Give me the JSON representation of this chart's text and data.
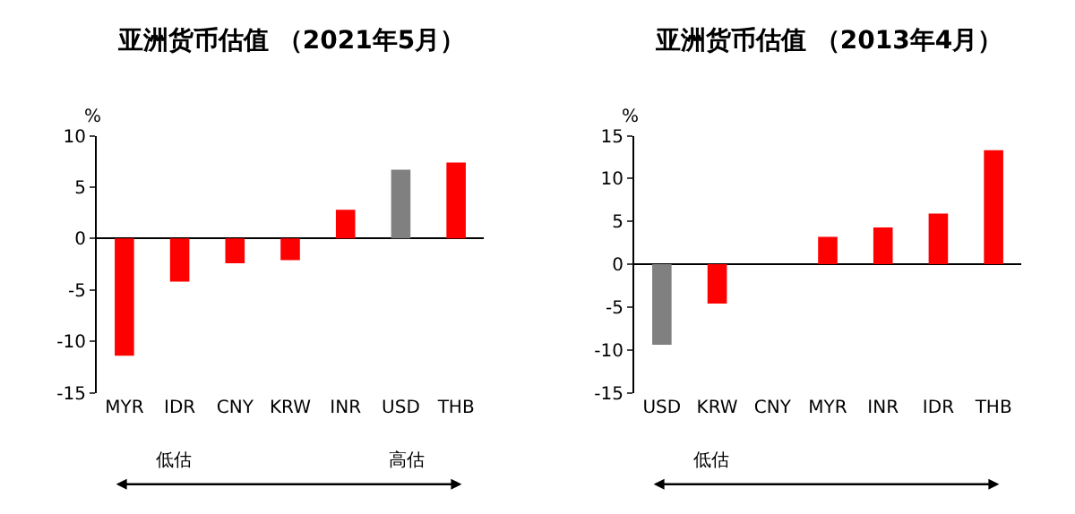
{
  "chart_data": [
    {
      "type": "bar",
      "title": "亚洲货币估值 （2021年5月）",
      "ylabel": "%",
      "categories": [
        "MYR",
        "IDR",
        "CNY",
        "KRW",
        "INR",
        "USD",
        "THB"
      ],
      "values": [
        -11.4,
        -4.2,
        -2.4,
        -2.1,
        2.8,
        6.7,
        7.4
      ],
      "colors": [
        "#ff0000",
        "#ff0000",
        "#ff0000",
        "#ff0000",
        "#ff0000",
        "#808080",
        "#ff0000"
      ],
      "ylim": [
        -15,
        10
      ],
      "yticks": [
        -15,
        -10,
        -5,
        0,
        5,
        10
      ],
      "annotations": [
        "低估",
        "高估"
      ]
    },
    {
      "type": "bar",
      "title": "亚洲货币估值 （2013年4月）",
      "ylabel": "%",
      "categories": [
        "USD",
        "KRW",
        "CNY",
        "MYR",
        "INR",
        "IDR",
        "THB"
      ],
      "values": [
        -9.4,
        -4.6,
        0,
        3.2,
        4.3,
        5.9,
        13.3
      ],
      "colors": [
        "#808080",
        "#ff0000",
        "#ff0000",
        "#ff0000",
        "#ff0000",
        "#ff0000",
        "#ff0000"
      ],
      "ylim": [
        -15,
        15
      ],
      "yticks": [
        -15,
        -10,
        -5,
        0,
        5,
        10,
        15
      ],
      "annotations": [
        "低估"
      ]
    }
  ]
}
